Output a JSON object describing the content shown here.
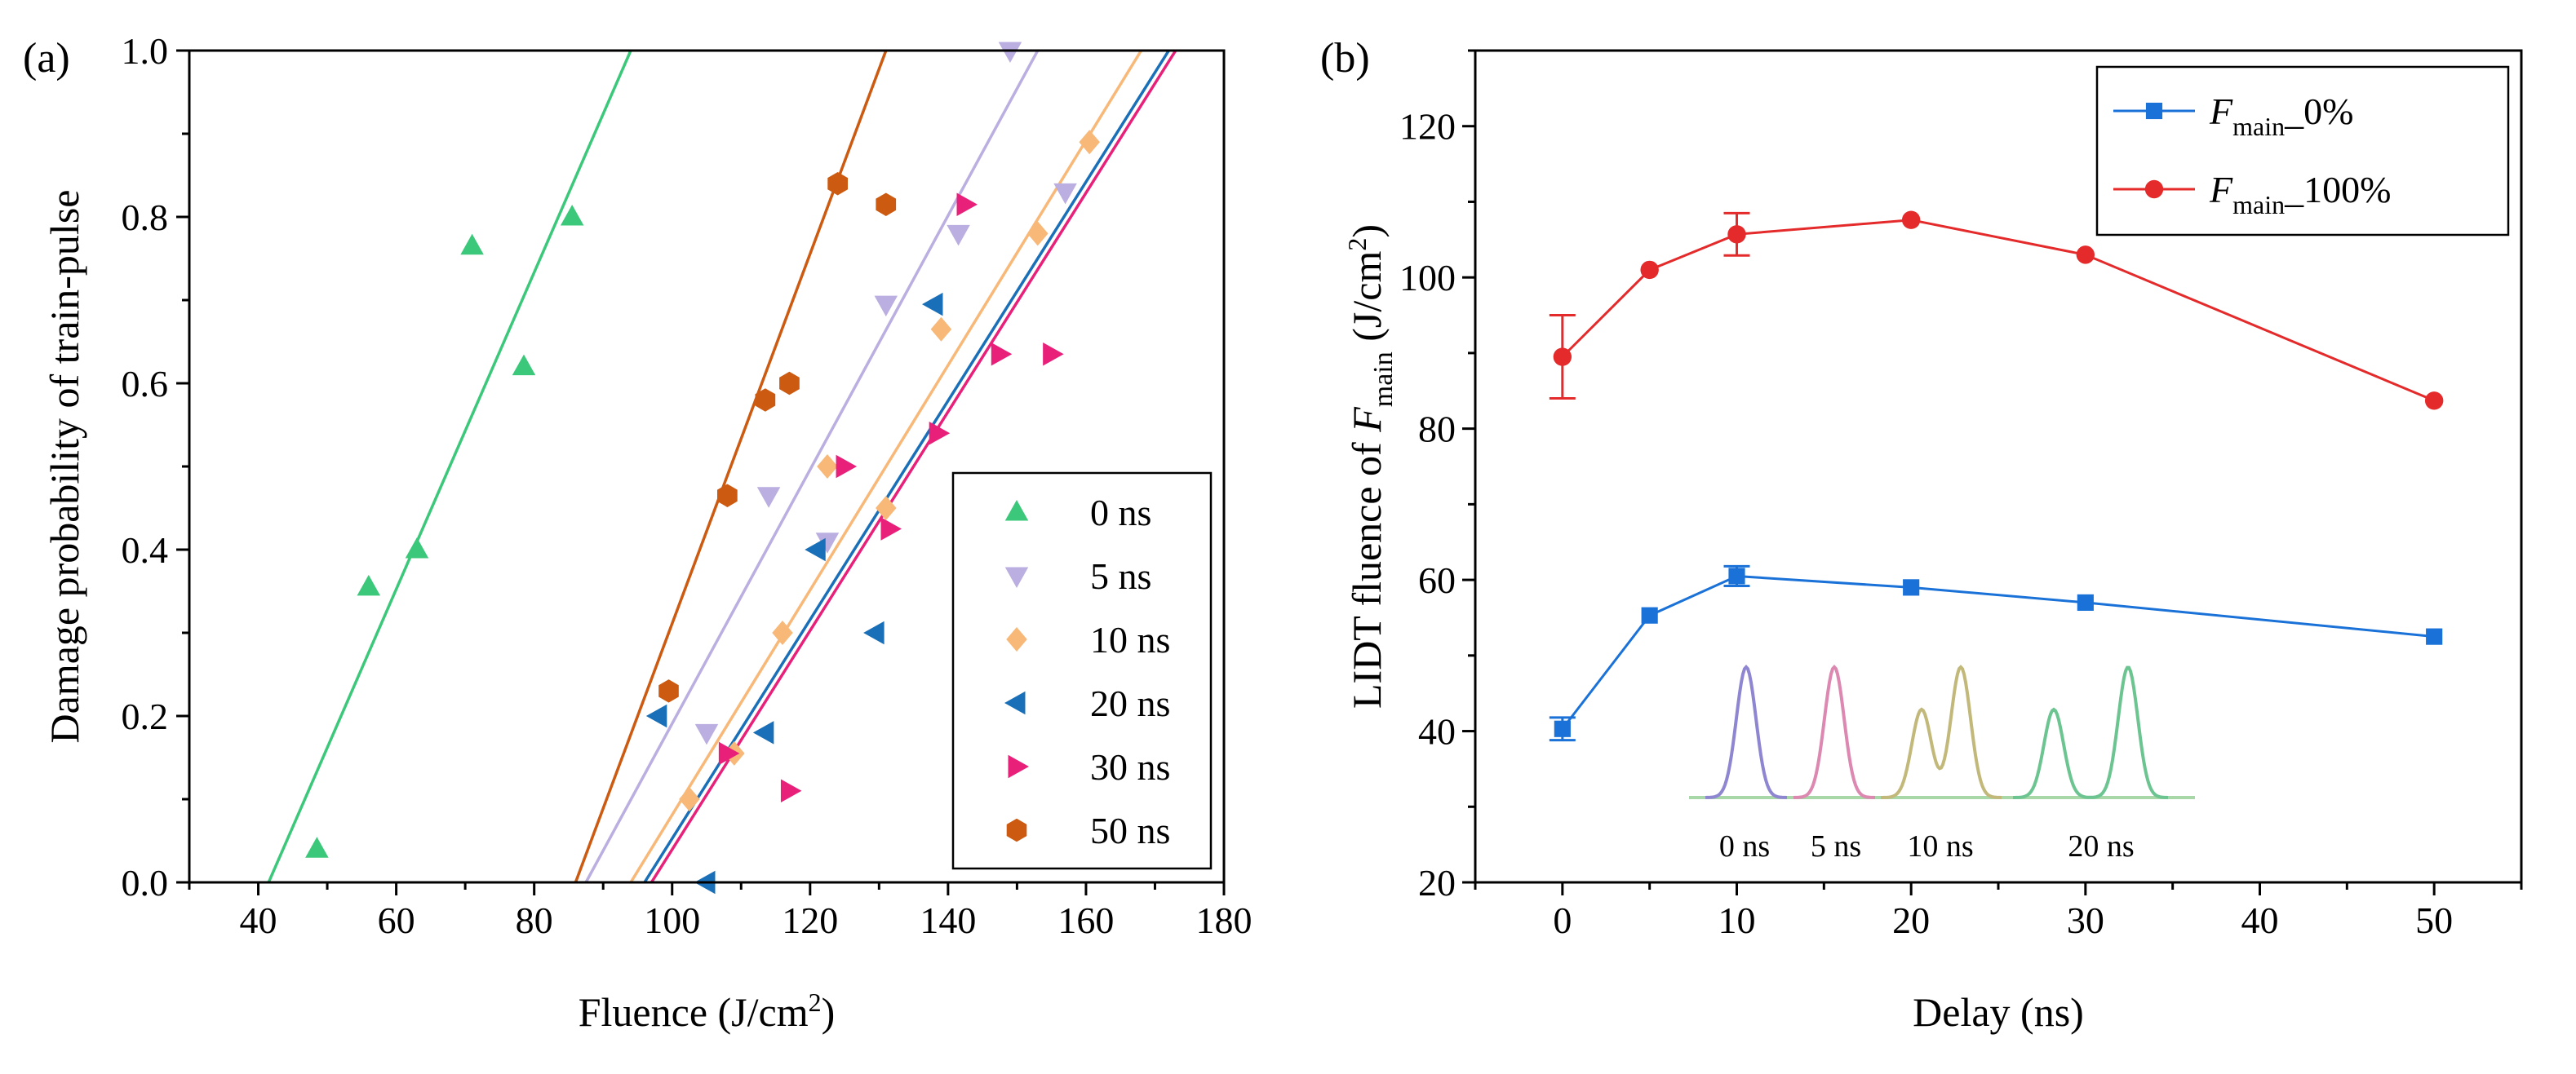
{
  "chart_data": [
    {
      "panel": "(a)",
      "type": "scatter",
      "xlabel": "Fluence (J/cm",
      "xlabel_sup": "2",
      "xlabel_tail": ")",
      "ylabel": "Damage probability of train-pulse",
      "xlim": [
        30,
        180
      ],
      "ylim": [
        0.0,
        1.0
      ],
      "xticks": [
        "40",
        "60",
        "80",
        "100",
        "120",
        "140",
        "160",
        "180"
      ],
      "yticks": [
        "0.0",
        "0.2",
        "0.4",
        "0.6",
        "0.8",
        "1.0"
      ],
      "legend_position": "bottom-right",
      "series": [
        {
          "name": "0 ns",
          "color": "#3cc87a",
          "marker": "triangle-up",
          "points": [
            [
              48.5,
              0.04
            ],
            [
              56,
              0.355
            ],
            [
              63,
              0.4
            ],
            [
              71,
              0.765
            ],
            [
              78.5,
              0.62
            ],
            [
              85.5,
              0.8
            ]
          ],
          "fit": [
            [
              41.5,
              0.0
            ],
            [
              94,
              1.0
            ]
          ]
        },
        {
          "name": "5 ns",
          "color": "#bbaee0",
          "marker": "triangle-down",
          "points": [
            [
              105,
              0.18
            ],
            [
              114,
              0.465
            ],
            [
              122.5,
              0.41
            ],
            [
              131,
              0.695
            ],
            [
              141.5,
              0.78
            ],
            [
              149,
              1.0
            ],
            [
              157,
              0.83
            ]
          ],
          "fit": [
            [
              87.5,
              0.0
            ],
            [
              153,
              1.0
            ]
          ]
        },
        {
          "name": "10 ns",
          "color": "#f8b878",
          "marker": "diamond",
          "points": [
            [
              102.5,
              0.1
            ],
            [
              109,
              0.155
            ],
            [
              116,
              0.3
            ],
            [
              122.5,
              0.5
            ],
            [
              131,
              0.45
            ],
            [
              139,
              0.665
            ],
            [
              153,
              0.78
            ],
            [
              160.5,
              0.89
            ]
          ],
          "fit": [
            [
              94,
              0.0
            ],
            [
              168,
              1.0
            ]
          ]
        },
        {
          "name": "20 ns",
          "color": "#1a70b8",
          "marker": "triangle-left",
          "points": [
            [
              98,
              0.2
            ],
            [
              105,
              0.0
            ],
            [
              113.5,
              0.18
            ],
            [
              121,
              0.4
            ],
            [
              129.5,
              0.3
            ],
            [
              138,
              0.695
            ]
          ],
          "fit": [
            [
              96,
              0.0
            ],
            [
              172,
              1.0
            ]
          ]
        },
        {
          "name": "30 ns",
          "color": "#e8207a",
          "marker": "triangle-right",
          "points": [
            [
              108,
              0.155
            ],
            [
              117,
              0.11
            ],
            [
              125,
              0.5
            ],
            [
              131.5,
              0.425
            ],
            [
              138.5,
              0.54
            ],
            [
              142.5,
              0.815
            ],
            [
              147.5,
              0.635
            ],
            [
              155,
              0.635
            ]
          ],
          "fit": [
            [
              97,
              0.0
            ],
            [
              173,
              1.0
            ]
          ]
        },
        {
          "name": "50 ns",
          "color": "#cc5a10",
          "marker": "hexagon",
          "points": [
            [
              99.5,
              0.23
            ],
            [
              108,
              0.465
            ],
            [
              113.5,
              0.58
            ],
            [
              117,
              0.6
            ],
            [
              124,
              0.84
            ],
            [
              131,
              0.815
            ]
          ],
          "fit": [
            [
              86,
              0.0
            ],
            [
              131,
              1.0
            ]
          ]
        }
      ]
    },
    {
      "panel": "(b)",
      "type": "line",
      "xlabel": "Delay (ns)",
      "ylabel": "LIDT fluence of ",
      "ylabel_var": "F",
      "ylabel_sub": "main",
      "ylabel_unit": " (J/cm",
      "ylabel_sup": "2",
      "ylabel_tail": ")",
      "xlim": [
        -5,
        55
      ],
      "ylim": [
        20,
        130
      ],
      "xticks": [
        "0",
        "10",
        "20",
        "30",
        "40",
        "50"
      ],
      "yticks": [
        "20",
        "40",
        "60",
        "80",
        "100",
        "120"
      ],
      "legend_position": "top-right",
      "series": [
        {
          "name_var": "F",
          "name_sub": "main",
          "name_tail": "_0%",
          "color": "#1a72d8",
          "marker": "square",
          "x": [
            0,
            5,
            10,
            20,
            30,
            50
          ],
          "y": [
            40.3,
            55.3,
            60.5,
            59.0,
            57.0,
            52.5
          ],
          "err": [
            1.5,
            0,
            1.3,
            0,
            0,
            0
          ]
        },
        {
          "name_var": "F",
          "name_sub": "main",
          "name_tail": "_100%",
          "color": "#e42a2a",
          "marker": "circle",
          "x": [
            0,
            5,
            10,
            20,
            30,
            50
          ],
          "y": [
            89.5,
            101.0,
            105.7,
            107.6,
            103.0,
            83.7
          ],
          "err": [
            5.5,
            0,
            2.8,
            0,
            0,
            0
          ]
        }
      ],
      "inset": {
        "labels": [
          "0 ns",
          "5 ns",
          "10 ns",
          "20 ns"
        ],
        "colors": [
          "#8f86d2",
          "#dc88b0",
          "#c2b87a",
          "#6cc490"
        ],
        "baseline_color": "#a8d8a8"
      }
    }
  ]
}
